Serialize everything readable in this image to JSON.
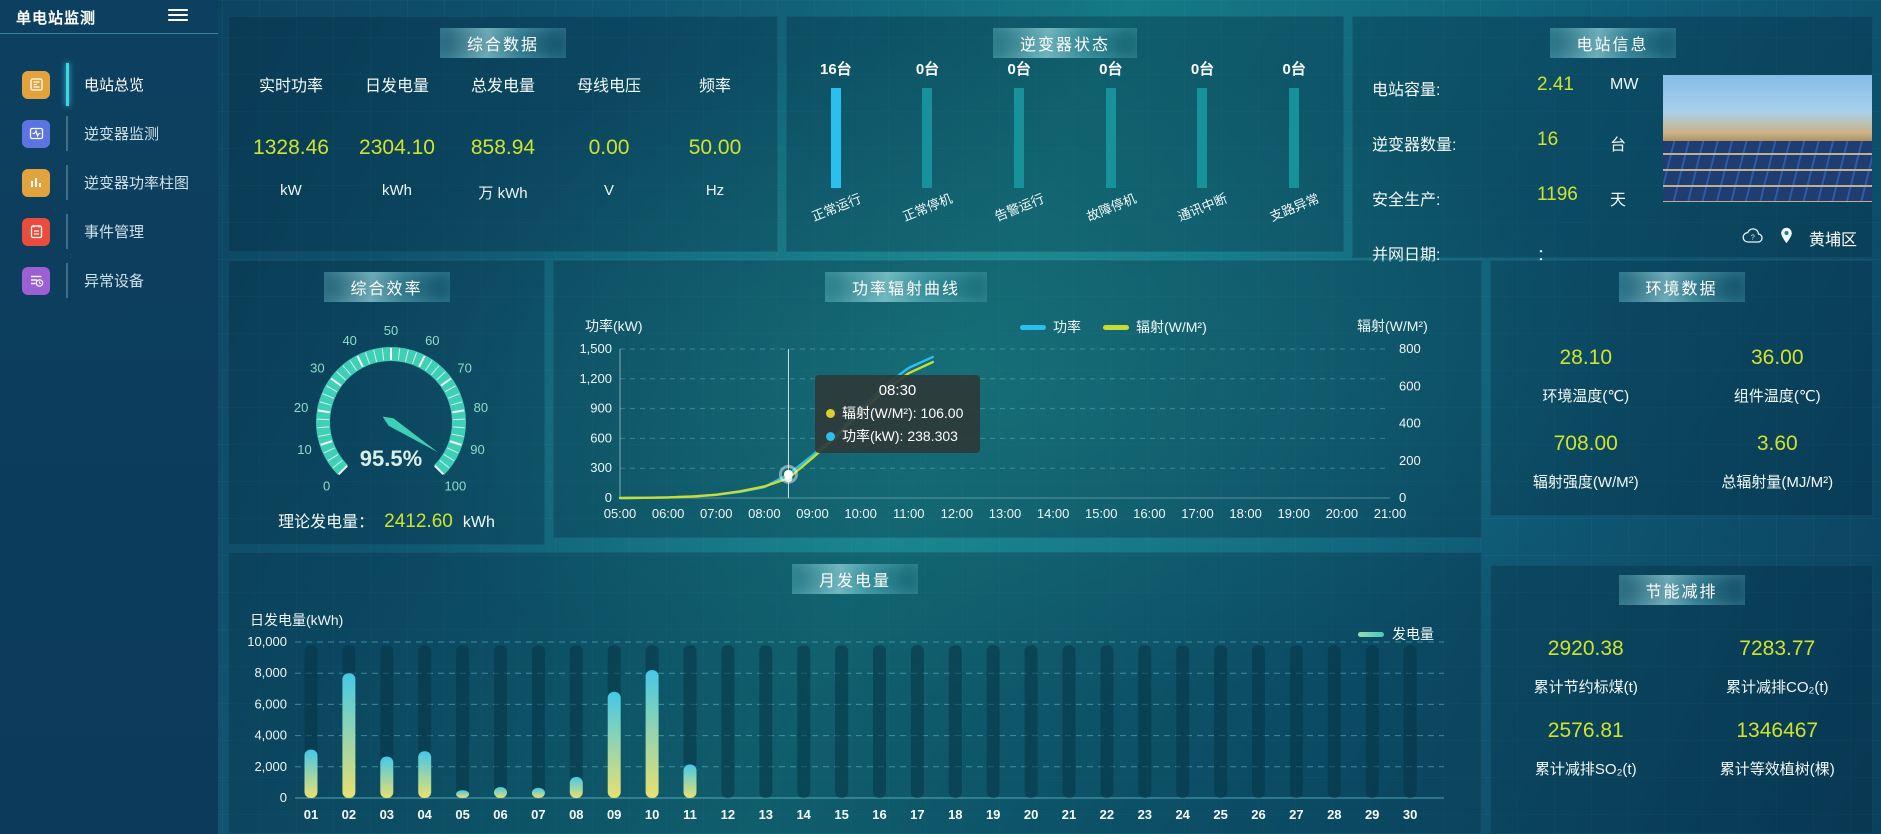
{
  "app": {
    "title": "单电站监测",
    "location": "黄埔区"
  },
  "sidebar": {
    "items": [
      {
        "name": "overview",
        "label": "电站总览",
        "icon": "overview-icon",
        "color": "#e2a23c",
        "active": true
      },
      {
        "name": "inverter-monitor",
        "label": "逆变器监测",
        "icon": "inverter-monitor-icon",
        "color": "#5b74e0",
        "active": false
      },
      {
        "name": "inverter-power-bars",
        "label": "逆变器功率柱图",
        "icon": "inverter-power-bars-icon",
        "color": "#e2a23c",
        "active": false
      },
      {
        "name": "event-management",
        "label": "事件管理",
        "icon": "event-management-icon",
        "color": "#e74c3c",
        "active": false
      },
      {
        "name": "abnormal-devices",
        "label": "异常设备",
        "icon": "abnormal-devices-icon",
        "color": "#9c5fd4",
        "active": false
      }
    ]
  },
  "panels": {
    "summary": {
      "title": "综合数据",
      "metrics": [
        {
          "label": "实时功率",
          "value": "1328.46",
          "unit": "kW"
        },
        {
          "label": "日发电量",
          "value": "2304.10",
          "unit": "kWh"
        },
        {
          "label": "总发电量",
          "value": "858.94",
          "unit": "万 kWh"
        },
        {
          "label": "母线电压",
          "value": "0.00",
          "unit": "V"
        },
        {
          "label": "频率",
          "value": "50.00",
          "unit": "Hz"
        }
      ]
    },
    "inverter_status": {
      "title": "逆变器状态",
      "items": [
        {
          "count": "16台",
          "label": "正常运行",
          "highlight": true
        },
        {
          "count": "0台",
          "label": "正常停机",
          "highlight": false
        },
        {
          "count": "0台",
          "label": "告警运行",
          "highlight": false
        },
        {
          "count": "0台",
          "label": "故障停机",
          "highlight": false
        },
        {
          "count": "0台",
          "label": "通讯中断",
          "highlight": false
        },
        {
          "count": "0台",
          "label": "支路异常",
          "highlight": false
        }
      ]
    },
    "station_info": {
      "title": "电站信息",
      "rows": [
        {
          "label": "电站容量:",
          "value": "2.41",
          "unit": "MW",
          "dim": false
        },
        {
          "label": "逆变器数量:",
          "value": "16",
          "unit": "台",
          "dim": false
        },
        {
          "label": "安全生产:",
          "value": "1196",
          "unit": "天",
          "dim": false
        },
        {
          "label": "并网日期:",
          "value": "：",
          "unit": "",
          "dim": true
        }
      ]
    },
    "efficiency": {
      "title": "综合效率",
      "gauge_display": "95.5%",
      "theory_label": "理论发电量：",
      "theory_value": "2412.60",
      "theory_unit": "kWh"
    },
    "power_curve": {
      "title": "功率辐射曲线",
      "ylabel_left": "功率(kW)",
      "ylabel_right": "辐射(W/M²)",
      "legend": [
        {
          "label": "功率",
          "color": "#29c0f0"
        },
        {
          "label": "辐射(W/M²)",
          "color": "#c8dc32"
        }
      ],
      "tooltip": {
        "time": "08:30",
        "rows": [
          {
            "text": "辐射(W/M²): 106.00",
            "color": "#ddce2f"
          },
          {
            "text": "功率(kW): 238.303",
            "color": "#29c0f0"
          }
        ]
      }
    },
    "environment": {
      "title": "环境数据",
      "metrics": [
        {
          "value": "28.10",
          "label": "环境温度(℃)"
        },
        {
          "value": "36.00",
          "label": "组件温度(℃)"
        },
        {
          "value": "708.00",
          "label": "辐射强度(W/M²)"
        },
        {
          "value": "3.60",
          "label": "总辐射量(MJ/M²)"
        }
      ]
    },
    "monthly": {
      "title": "月发电量",
      "ylabel": "日发电量(kWh)",
      "legend": "发电量"
    },
    "saving": {
      "title": "节能减排",
      "metrics": [
        {
          "value": "2920.38",
          "label": "累计节约标煤(t)"
        },
        {
          "value": "7283.77",
          "label": "累计减排CO₂(t)"
        },
        {
          "value": "2576.81",
          "label": "累计减排SO₂(t)"
        },
        {
          "value": "1346467",
          "label": "累计等效植树(棵)"
        }
      ]
    }
  },
  "chart_data": [
    {
      "type": "gauge",
      "title": "综合效率",
      "value": 95.5,
      "min": 0,
      "max": 100,
      "unit": "%",
      "ticks": [
        0,
        10,
        20,
        30,
        40,
        50,
        60,
        70,
        80,
        90,
        100
      ],
      "color": "#3ecfb6",
      "display": "95.5%"
    },
    {
      "type": "line",
      "title": "功率辐射曲线",
      "x": [
        "05:00",
        "05:30",
        "06:00",
        "06:30",
        "07:00",
        "07:30",
        "08:00",
        "08:30",
        "09:00",
        "09:30",
        "10:00",
        "10:30",
        "11:00",
        "11:30"
      ],
      "series": [
        {
          "name": "功率",
          "axis": "left",
          "color": "#29c0f0",
          "values": [
            0,
            2,
            6,
            14,
            32,
            62,
            110,
            238.3,
            430,
            640,
            900,
            1130,
            1310,
            1420
          ]
        },
        {
          "name": "辐射(W/M²)",
          "axis": "right",
          "color": "#c8dc32",
          "values": [
            0,
            1,
            3,
            8,
            18,
            36,
            62,
            106,
            215,
            330,
            460,
            580,
            670,
            730
          ]
        }
      ],
      "y_left": {
        "label": "功率(kW)",
        "min": 0,
        "max": 1500,
        "ticks": [
          0,
          300,
          600,
          900,
          1200,
          1500
        ]
      },
      "y_right": {
        "label": "辐射(W/M²)",
        "min": 0,
        "max": 800,
        "ticks": [
          0,
          200,
          400,
          600,
          800
        ]
      },
      "x_axis_labels": [
        "05:00",
        "06:00",
        "07:00",
        "08:00",
        "09:00",
        "10:00",
        "11:00",
        "12:00",
        "13:00",
        "14:00",
        "15:00",
        "16:00",
        "17:00",
        "18:00",
        "19:00",
        "20:00",
        "21:00"
      ],
      "grid": true,
      "legend_position": "top-right",
      "highlight": {
        "x": "08:30",
        "power": 238.303,
        "radiation": 106.0
      }
    },
    {
      "type": "bar",
      "title": "月发电量",
      "categories": [
        "01",
        "02",
        "03",
        "04",
        "05",
        "06",
        "07",
        "08",
        "09",
        "10",
        "11",
        "12",
        "13",
        "14",
        "15",
        "16",
        "17",
        "18",
        "19",
        "20",
        "21",
        "22",
        "23",
        "24",
        "25",
        "26",
        "27",
        "28",
        "29",
        "30"
      ],
      "values": [
        3100,
        8000,
        2650,
        3000,
        500,
        700,
        650,
        1350,
        6800,
        8200,
        2150,
        0,
        0,
        0,
        0,
        0,
        0,
        0,
        0,
        0,
        0,
        0,
        0,
        0,
        0,
        0,
        0,
        0,
        0,
        0
      ],
      "ylabel": "日发电量(kWh)",
      "ylim": [
        0,
        10000
      ],
      "yticks": [
        0,
        2000,
        4000,
        6000,
        8000,
        10000
      ],
      "legend": "发电量",
      "grid": true,
      "bar_gradient": [
        "#45c8e8",
        "#e8e070"
      ],
      "track_value": 9800
    }
  ]
}
